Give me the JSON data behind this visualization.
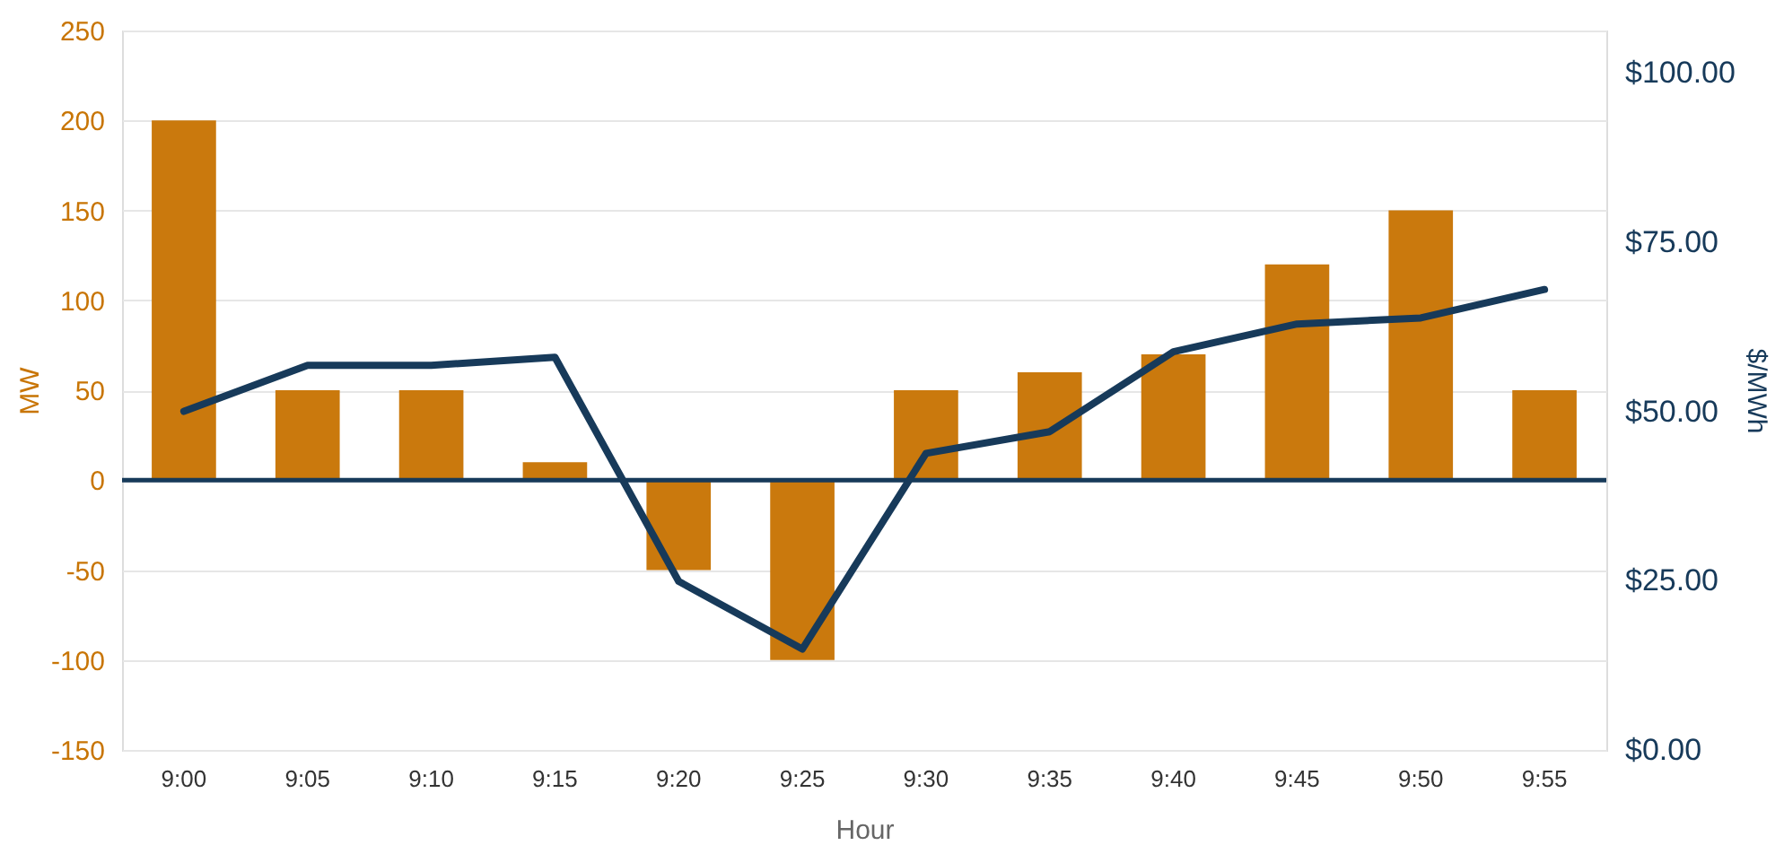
{
  "chart_data": {
    "type": "bar",
    "xlabel": "Hour",
    "ylabel": "MW",
    "y2label": "$/MWh",
    "categories": [
      "9:00",
      "9:05",
      "9:10",
      "9:15",
      "9:20",
      "9:25",
      "9:30",
      "9:35",
      "9:40",
      "9:45",
      "9:50",
      "9:55"
    ],
    "series": [
      {
        "color": "#c87505",
        "values": [
          200,
          50,
          50,
          10,
          -50,
          -100,
          50,
          60,
          70,
          120,
          150,
          50
        ]
      },
      {
        "type": "line",
        "axis": "y2",
        "color": "#173a5a",
        "values": [
          50.0,
          56.8,
          56.8,
          58.0,
          24.9,
          14.9,
          43.8,
          47.0,
          58.8,
          62.9,
          63.8,
          68.0
        ]
      }
    ],
    "ylim": [
      -150,
      250
    ],
    "yticks": [
      -150,
      -100,
      -50,
      0,
      50,
      100,
      150,
      200,
      250
    ],
    "y2lim": [
      0,
      106.25
    ],
    "y2ticks": [
      {
        "value": 0,
        "label": "$0.00"
      },
      {
        "value": 25,
        "label": "$25.00"
      },
      {
        "value": 50,
        "label": "$50.00"
      },
      {
        "value": 75,
        "label": "$75.00"
      },
      {
        "value": 100,
        "label": "$100.00"
      }
    ],
    "grid": "y",
    "line_style": "solid",
    "marker": "none",
    "ref_lines": [
      {
        "axis": "y",
        "value": 0,
        "label": null,
        "color": "#173a5a"
      }
    ]
  }
}
